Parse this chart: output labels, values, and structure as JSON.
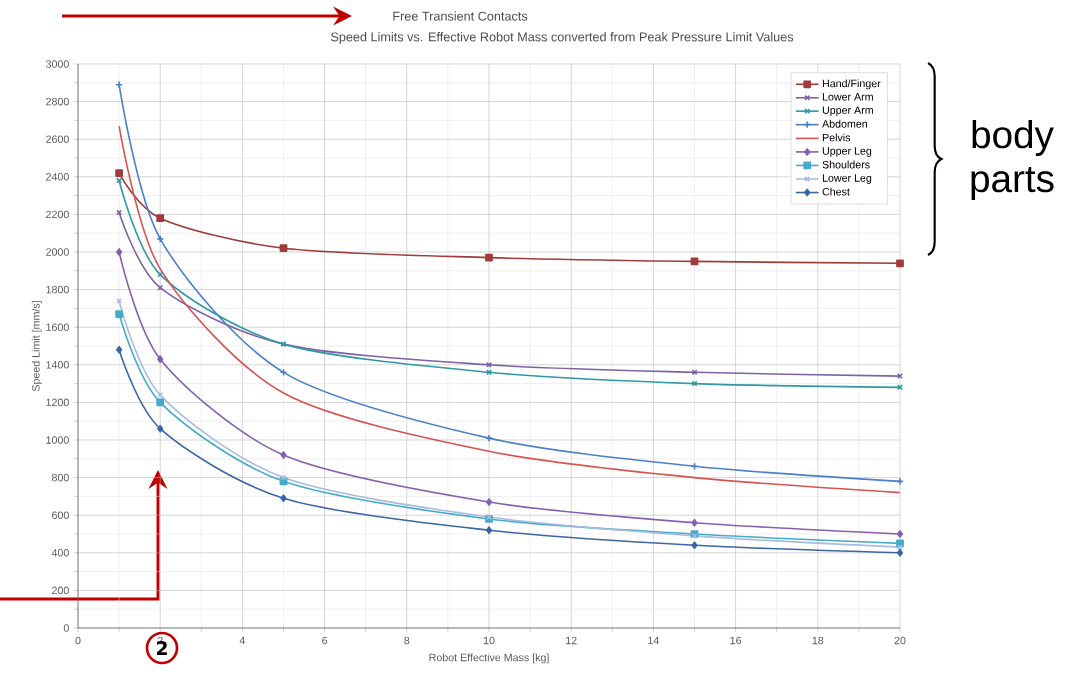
{
  "chart_data": {
    "type": "line",
    "title": "Free Transient Contacts",
    "subtitle": "Speed Limits vs. Effective Robot Mass converted from Peak Pressure Limit Values",
    "xlabel": "Robot Effective Mass [kg]",
    "ylabel": "Speed Limit [mm/s]",
    "x": [
      1,
      2,
      5,
      10,
      15,
      20
    ],
    "series": [
      {
        "name": "Hand/Finger",
        "color": "#a23b3b",
        "marker": "square",
        "values": [
          2420,
          2180,
          2020,
          1970,
          1950,
          1940
        ]
      },
      {
        "name": "Lower Arm",
        "color": "#7f62a4",
        "marker": "cross",
        "values": [
          2210,
          1810,
          1510,
          1400,
          1360,
          1340
        ]
      },
      {
        "name": "Upper Arm",
        "color": "#2f98a4",
        "marker": "cross",
        "values": [
          2380,
          1880,
          1510,
          1360,
          1300,
          1280
        ]
      },
      {
        "name": "Abdomen",
        "color": "#4a7fc9",
        "marker": "plus",
        "values": [
          2890,
          2070,
          1360,
          1010,
          860,
          780
        ]
      },
      {
        "name": "Pelvis",
        "color": "#d65350",
        "marker": "none",
        "values": [
          2670,
          1910,
          1250,
          940,
          800,
          720
        ]
      },
      {
        "name": "Upper Leg",
        "color": "#8560b0",
        "marker": "diamond",
        "values": [
          2000,
          1430,
          920,
          670,
          560,
          500
        ]
      },
      {
        "name": "Shoulders",
        "color": "#45aac8",
        "marker": "square",
        "values": [
          1670,
          1200,
          780,
          580,
          500,
          450
        ]
      },
      {
        "name": "Lower Leg",
        "color": "#a8bce0",
        "marker": "cross",
        "values": [
          1740,
          1240,
          800,
          590,
          490,
          430
        ]
      },
      {
        "name": "Chest",
        "color": "#3a66a6",
        "marker": "diamond",
        "values": [
          1480,
          1060,
          690,
          520,
          440,
          400
        ]
      }
    ],
    "xlim": [
      0,
      20
    ],
    "ylim": [
      0,
      3000
    ],
    "xticks": [
      0,
      2,
      4,
      6,
      8,
      10,
      12,
      14,
      16,
      18,
      20
    ],
    "yticks": [
      0,
      200,
      400,
      600,
      800,
      1000,
      1200,
      1400,
      1600,
      1800,
      2000,
      2200,
      2400,
      2600,
      2800,
      3000
    ],
    "grid": true,
    "legend": "top right",
    "line_style": "solid",
    "annotations": [
      "body parts",
      "2"
    ]
  }
}
